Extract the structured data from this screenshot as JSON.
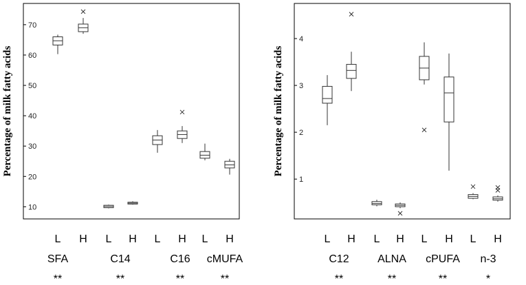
{
  "chart_data": [
    {
      "type": "box",
      "ylabel": "Percentage of milk fatty acids",
      "ylim": [
        6,
        77
      ],
      "yticks": [
        10,
        20,
        30,
        40,
        50,
        60,
        70
      ],
      "variables": [
        {
          "name": "SFA",
          "significance": "**",
          "groups": [
            {
              "label": "L",
              "min": 60.3,
              "q1": 63.3,
              "median": 64.7,
              "q3": 66.0,
              "max": 66.7,
              "outliers": []
            },
            {
              "label": "H",
              "min": 67.0,
              "q1": 67.7,
              "median": 69.0,
              "q3": 70.2,
              "max": 72.2,
              "outliers": [
                74.3
              ]
            }
          ]
        },
        {
          "name": "C14",
          "significance": "**",
          "groups": [
            {
              "label": "L",
              "min": 9.5,
              "q1": 9.7,
              "median": 10.1,
              "q3": 10.5,
              "max": 10.7,
              "outliers": []
            },
            {
              "label": "H",
              "min": 10.7,
              "q1": 10.9,
              "median": 11.2,
              "q3": 11.5,
              "max": 11.8,
              "outliers": []
            }
          ]
        },
        {
          "name": "C16",
          "significance": "**",
          "groups": [
            {
              "label": "L",
              "min": 27.8,
              "q1": 30.5,
              "median": 32.0,
              "q3": 33.4,
              "max": 35.3,
              "outliers": []
            },
            {
              "label": "H",
              "min": 31.0,
              "q1": 32.5,
              "median": 33.8,
              "q3": 35.0,
              "max": 36.6,
              "outliers": [
                41.2
              ]
            }
          ]
        },
        {
          "name": "cMUFA",
          "significance": "**",
          "groups": [
            {
              "label": "L",
              "min": 25.3,
              "q1": 26.0,
              "median": 27.0,
              "q3": 28.2,
              "max": 30.8,
              "outliers": []
            },
            {
              "label": "H",
              "min": 20.6,
              "q1": 22.8,
              "median": 23.8,
              "q3": 25.0,
              "max": 25.8,
              "outliers": []
            }
          ]
        }
      ]
    },
    {
      "type": "box",
      "ylabel": "Percentage of milk fatty acids",
      "ylim": [
        0.15,
        4.75
      ],
      "yticks": [
        1,
        2,
        3,
        4
      ],
      "variables": [
        {
          "name": "C12",
          "significance": "**",
          "groups": [
            {
              "label": "L",
              "min": 2.15,
              "q1": 2.62,
              "median": 2.72,
              "q3": 2.98,
              "max": 3.22,
              "outliers": []
            },
            {
              "label": "H",
              "min": 2.88,
              "q1": 3.15,
              "median": 3.32,
              "q3": 3.45,
              "max": 3.72,
              "outliers": [
                4.52
              ]
            }
          ]
        },
        {
          "name": "ALNA",
          "significance": "**",
          "groups": [
            {
              "label": "L",
              "min": 0.42,
              "q1": 0.45,
              "median": 0.48,
              "q3": 0.52,
              "max": 0.56,
              "outliers": []
            },
            {
              "label": "H",
              "min": 0.38,
              "q1": 0.41,
              "median": 0.44,
              "q3": 0.47,
              "max": 0.5,
              "outliers": [
                0.27
              ]
            }
          ]
        },
        {
          "name": "cPUFA",
          "significance": "**",
          "groups": [
            {
              "label": "L",
              "min": 3.02,
              "q1": 3.12,
              "median": 3.37,
              "q3": 3.62,
              "max": 3.92,
              "outliers": [
                2.05
              ]
            },
            {
              "label": "H",
              "min": 1.18,
              "q1": 2.22,
              "median": 2.84,
              "q3": 3.18,
              "max": 3.68,
              "outliers": []
            }
          ]
        },
        {
          "name": "n-3",
          "significance": "*",
          "groups": [
            {
              "label": "L",
              "min": 0.57,
              "q1": 0.59,
              "median": 0.63,
              "q3": 0.67,
              "max": 0.7,
              "outliers": [
                0.84
              ]
            },
            {
              "label": "H",
              "min": 0.52,
              "q1": 0.55,
              "median": 0.58,
              "q3": 0.62,
              "max": 0.65,
              "outliers": [
                0.82,
                0.76
              ]
            }
          ]
        }
      ]
    }
  ]
}
